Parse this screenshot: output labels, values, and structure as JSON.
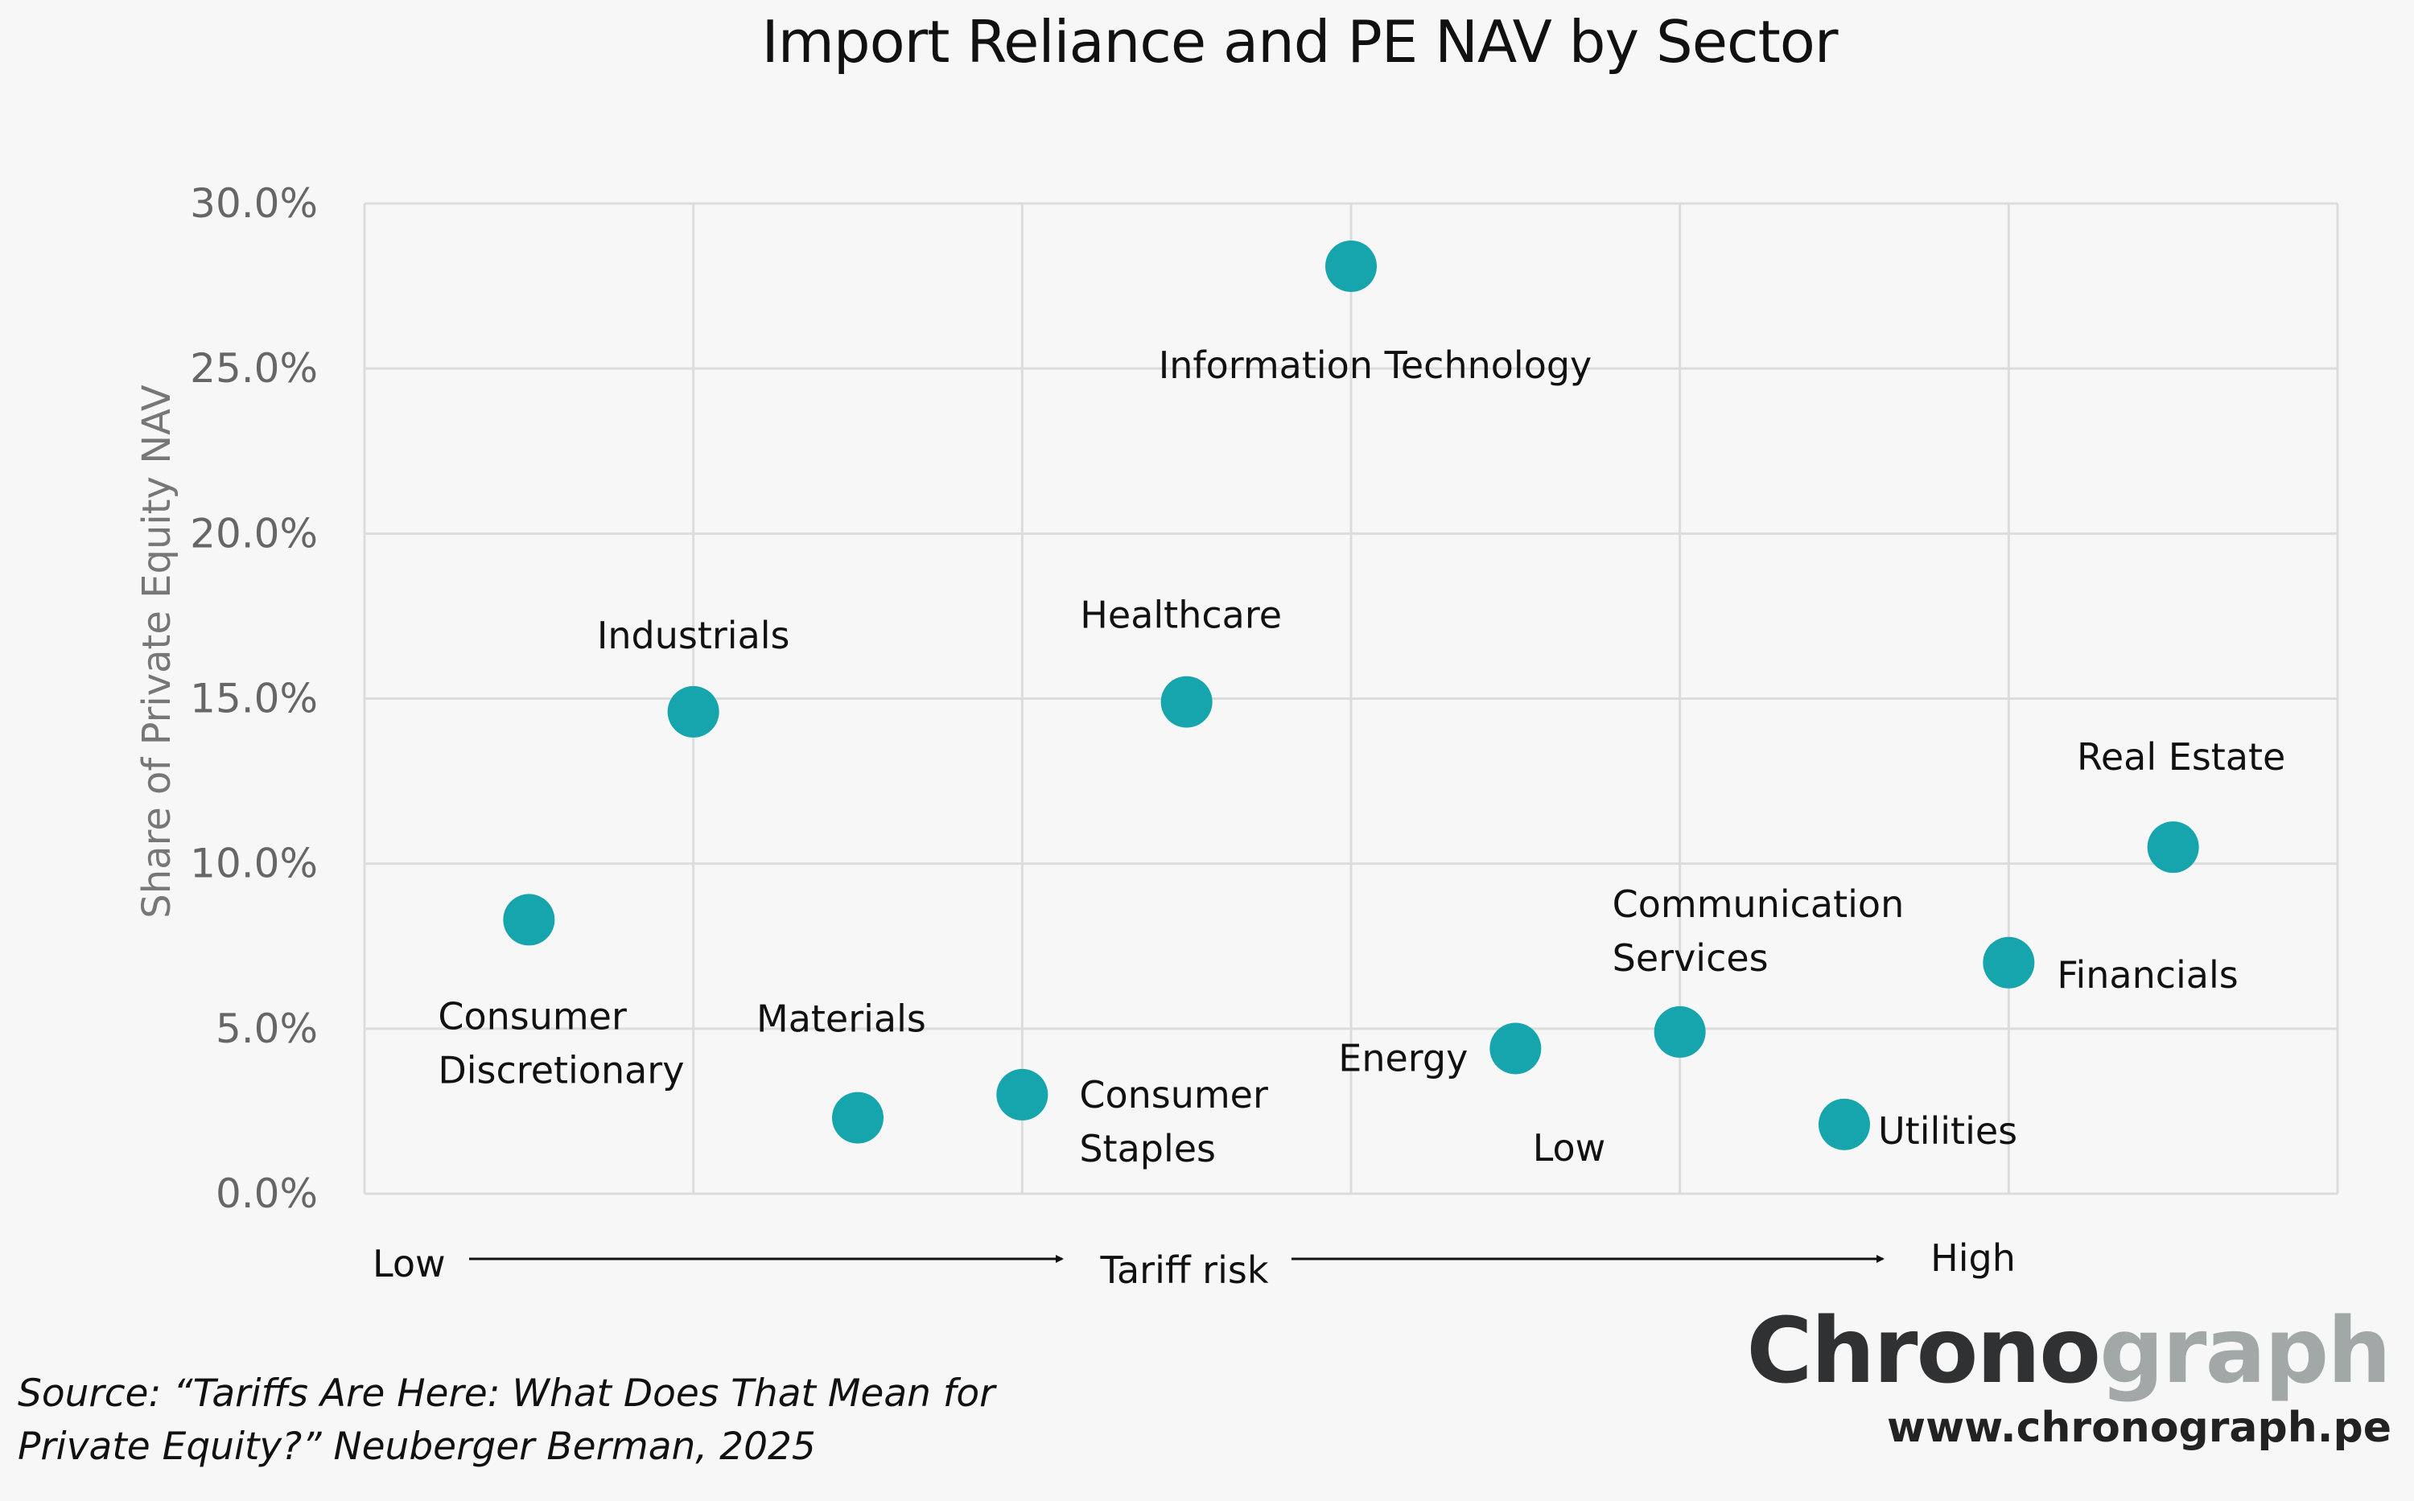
{
  "chart_data": {
    "type": "scatter",
    "title": "Import Reliance and PE NAV by Sector",
    "ylabel": "Share of Private Equity NAV",
    "ylim": [
      0,
      30
    ],
    "yticks": [
      "0.0%",
      "5.0%",
      "10.0%",
      "15.0%",
      "20.0%",
      "25.0%",
      "30.0%"
    ],
    "xlim": [
      0,
      6
    ],
    "grid": true,
    "x_axis": {
      "low_label": "Low",
      "center_label": "Tariff risk",
      "high_label": "High"
    },
    "points": [
      {
        "label": "Consumer Discretionary",
        "label_lines": [
          "Consumer",
          "Discretionary"
        ],
        "x": 0.5,
        "y": 8.3
      },
      {
        "label": "Industrials",
        "label_lines": [
          "Industrials"
        ],
        "x": 1.0,
        "y": 14.6
      },
      {
        "label": "Materials",
        "label_lines": [
          "Materials"
        ],
        "x": 1.5,
        "y": 2.3
      },
      {
        "label": "Consumer Staples",
        "label_lines": [
          "Consumer",
          "Staples"
        ],
        "x": 2.0,
        "y": 3.0
      },
      {
        "label": "Healthcare",
        "label_lines": [
          "Healthcare"
        ],
        "x": 2.5,
        "y": 14.9
      },
      {
        "label": "Information Technology",
        "label_lines": [
          "Information Technology"
        ],
        "x": 3.0,
        "y": 28.1
      },
      {
        "label": "Energy",
        "label_lines": [
          "Energy"
        ],
        "x": 3.5,
        "y": 4.4
      },
      {
        "label": "Communication Services",
        "label_lines": [
          "Communication",
          "Services"
        ],
        "x": 4.0,
        "y": 4.9
      },
      {
        "label": "Utilities",
        "label_lines": [
          "Utilities"
        ],
        "x": 4.5,
        "y": 2.1
      },
      {
        "label": "Financials",
        "label_lines": [
          "Financials"
        ],
        "x": 5.0,
        "y": 7.0
      },
      {
        "label": "Real Estate",
        "label_lines": [
          "Real Estate"
        ],
        "x": 5.5,
        "y": 10.5
      }
    ],
    "annotations": [
      "Low"
    ],
    "marker_color": "#17a5ad"
  },
  "source": {
    "line1": "Source: “Tariffs Are Here: What Does That Mean for",
    "line2": "Private Equity?” Neuberger Berman, 2025"
  },
  "brand": {
    "part1": "Chrono",
    "part2": "graph",
    "url": "www.chronograph.pe"
  },
  "colors": {
    "background": "#f7f7f7",
    "marker": "#17a5ad",
    "grid": "#dcdcdc",
    "brand_dark": "#2f3133",
    "brand_light": "#a2a7a7"
  }
}
